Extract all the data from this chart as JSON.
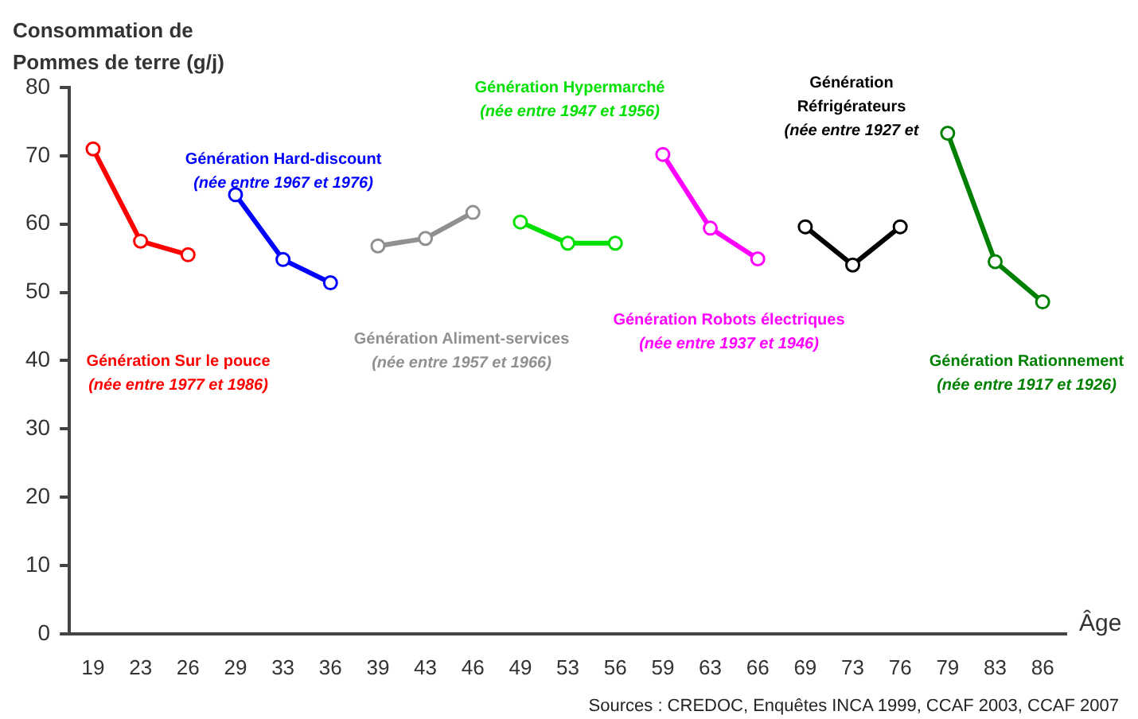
{
  "chart_data": {
    "type": "line",
    "ylabel": "Consommation de Pommes de terre (g/j)",
    "xlabel": "Âge",
    "categories": [
      "19",
      "23",
      "26",
      "29",
      "33",
      "36",
      "39",
      "43",
      "46",
      "49",
      "53",
      "56",
      "59",
      "63",
      "66",
      "69",
      "73",
      "76",
      "79",
      "83",
      "86"
    ],
    "ylim": [
      0,
      80
    ],
    "yticks": [
      0,
      10,
      20,
      30,
      40,
      50,
      60,
      70,
      80
    ],
    "grid": false,
    "legend": false,
    "marker": "circle",
    "line_style": "solid",
    "series": [
      {
        "name": "Génération Sur le pouce",
        "color": "#ff0000",
        "values": [
          71,
          57.5,
          55.5,
          null,
          null,
          null,
          null,
          null,
          null,
          null,
          null,
          null,
          null,
          null,
          null,
          null,
          null,
          null,
          null,
          null,
          null
        ]
      },
      {
        "name": "Génération Hard-discount",
        "color": "#0000ff",
        "values": [
          null,
          null,
          null,
          64.3,
          54.8,
          51.4,
          null,
          null,
          null,
          null,
          null,
          null,
          null,
          null,
          null,
          null,
          null,
          null,
          null,
          null,
          null
        ]
      },
      {
        "name": "Génération Aliment-services",
        "color": "#909090",
        "values": [
          null,
          null,
          null,
          null,
          null,
          null,
          56.8,
          57.9,
          61.7,
          null,
          null,
          null,
          null,
          null,
          null,
          null,
          null,
          null,
          null,
          null,
          null
        ]
      },
      {
        "name": "Génération Hypermarché",
        "color": "#00e000",
        "values": [
          null,
          null,
          null,
          null,
          null,
          null,
          null,
          null,
          null,
          60.3,
          57.2,
          57.2,
          null,
          null,
          null,
          null,
          null,
          null,
          null,
          null,
          null
        ]
      },
      {
        "name": "Génération Robots électriques",
        "color": "#ff00ff",
        "values": [
          null,
          null,
          null,
          null,
          null,
          null,
          null,
          null,
          null,
          null,
          null,
          null,
          70.2,
          59.4,
          54.9,
          null,
          null,
          null,
          null,
          null,
          null
        ]
      },
      {
        "name": "Génération Réfrigérateurs",
        "color": "#000000",
        "values": [
          null,
          null,
          null,
          null,
          null,
          null,
          null,
          null,
          null,
          null,
          null,
          null,
          null,
          null,
          null,
          59.6,
          54,
          59.6,
          null,
          null,
          null
        ]
      },
      {
        "name": "Génération Rationnement",
        "color": "#008000",
        "values": [
          null,
          null,
          null,
          null,
          null,
          null,
          null,
          null,
          null,
          null,
          null,
          null,
          null,
          null,
          null,
          null,
          null,
          null,
          73.3,
          54.5,
          48.6
        ]
      }
    ],
    "annotations": [
      "(née entre 1977 et 1986)",
      "(née entre 1967 et 1976)",
      "(née entre 1957 et 1966)",
      "(née entre 1947 et 1956)",
      "(née entre 1937 et 1946)",
      "(née entre 1927 et",
      "(née entre 1917 et 1926)",
      "Sources : CREDOC, Enquêtes INCA 1999, CCAF 2003, CCAF 2007"
    ]
  }
}
